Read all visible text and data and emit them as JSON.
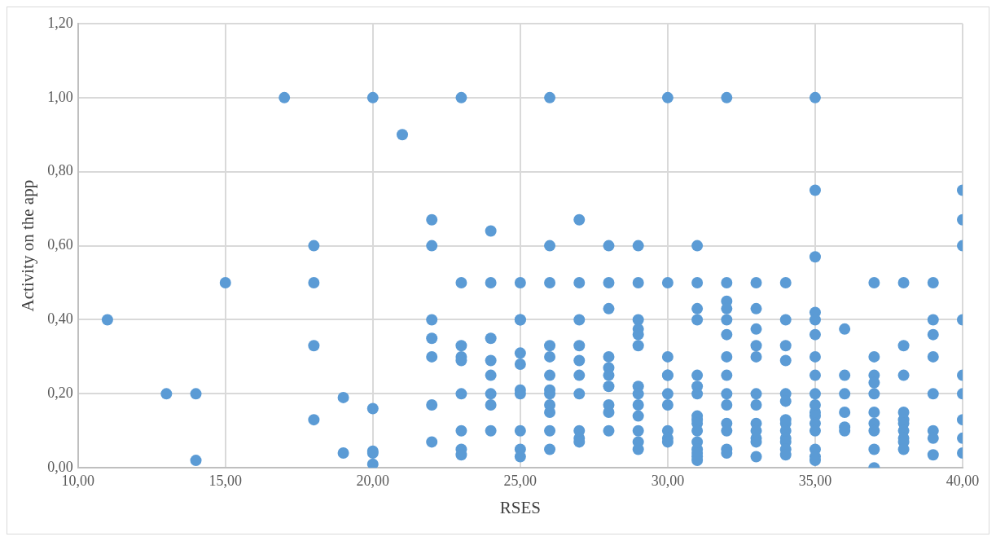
{
  "chart_data": {
    "type": "scatter",
    "xlabel": "RSES",
    "ylabel": "Activity on the app",
    "marker": "circle",
    "grid": true,
    "xlim": [
      10,
      40
    ],
    "ylim": [
      0,
      1.2
    ],
    "xticks": [
      {
        "value": 10,
        "label": "10,00"
      },
      {
        "value": 15,
        "label": "15,00"
      },
      {
        "value": 20,
        "label": "20,00"
      },
      {
        "value": 25,
        "label": "25,00"
      },
      {
        "value": 30,
        "label": "30,00"
      },
      {
        "value": 35,
        "label": "35,00"
      },
      {
        "value": 40,
        "label": "40,00"
      }
    ],
    "yticks": [
      {
        "value": 0,
        "label": "0,00"
      },
      {
        "value": 0.2,
        "label": "0,20"
      },
      {
        "value": 0.4,
        "label": "0,40"
      },
      {
        "value": 0.6,
        "label": "0,60"
      },
      {
        "value": 0.8,
        "label": "0,80"
      },
      {
        "value": 1,
        "label": "1,00"
      },
      {
        "value": 1.2,
        "label": "1,20"
      }
    ],
    "series": [
      {
        "color": "#5b9bd5",
        "x": [
          11,
          13,
          14,
          14,
          15,
          17,
          18,
          18,
          18,
          18,
          19,
          19,
          20,
          20,
          20,
          20,
          20,
          21,
          22,
          22,
          22,
          22,
          22,
          22,
          22,
          23,
          23,
          23,
          23,
          23,
          23,
          23,
          23,
          23,
          24,
          24,
          24,
          24,
          24,
          24,
          24,
          24,
          25,
          25,
          25,
          25,
          25,
          25,
          25,
          25,
          25,
          25,
          26,
          26,
          26,
          26,
          26,
          26,
          26,
          26,
          26,
          26,
          26,
          26,
          27,
          27,
          27,
          27,
          27,
          27,
          27,
          27,
          27,
          27,
          28,
          28,
          28,
          28,
          28,
          28,
          28,
          28,
          28,
          28,
          29,
          29,
          29,
          29,
          29,
          29,
          29,
          29,
          29,
          29,
          29,
          29,
          29,
          30,
          30,
          30,
          30,
          30,
          30,
          30,
          30,
          30,
          30,
          31,
          31,
          31,
          31,
          31,
          31,
          31,
          31,
          31,
          31,
          31,
          31,
          31,
          31,
          31,
          31,
          32,
          32,
          32,
          32,
          32,
          32,
          32,
          32,
          32,
          32,
          32,
          32,
          32,
          32,
          33,
          33,
          33,
          33,
          33,
          33,
          33,
          33,
          33,
          33,
          33,
          33,
          34,
          34,
          34,
          34,
          34,
          34,
          34,
          34,
          34,
          34,
          34,
          34,
          34,
          35,
          35,
          35,
          35,
          35,
          35,
          35,
          35,
          35,
          35,
          35,
          35,
          35,
          35,
          35,
          35,
          35,
          36,
          36,
          36,
          36,
          36,
          36,
          37,
          37,
          37,
          37,
          37,
          37,
          37,
          37,
          37,
          37,
          38,
          38,
          38,
          38,
          38,
          38,
          38,
          38,
          38,
          38,
          39,
          39,
          39,
          39,
          39,
          39,
          39,
          39,
          40,
          40,
          40,
          40,
          40,
          40,
          40,
          40,
          40
        ],
        "values": [
          0.4,
          0.2,
          0.2,
          0.02,
          0.5,
          1,
          0.6,
          0.5,
          0.33,
          0.13,
          0.19,
          0.04,
          1,
          0.16,
          0.045,
          0.04,
          0.01,
          0.9,
          0.67,
          0.6,
          0.4,
          0.35,
          0.3,
          0.17,
          0.07,
          1,
          0.5,
          0.33,
          0.3,
          0.29,
          0.2,
          0.1,
          0.05,
          0.035,
          0.64,
          0.5,
          0.35,
          0.29,
          0.25,
          0.2,
          0.17,
          0.1,
          0.5,
          0.4,
          0.4,
          0.31,
          0.28,
          0.21,
          0.2,
          0.1,
          0.05,
          0.03,
          1,
          0.6,
          0.5,
          0.33,
          0.3,
          0.25,
          0.21,
          0.2,
          0.17,
          0.15,
          0.1,
          0.05,
          0.67,
          0.5,
          0.4,
          0.33,
          0.29,
          0.25,
          0.2,
          0.1,
          0.08,
          0.07,
          0.6,
          0.5,
          0.43,
          0.3,
          0.27,
          0.25,
          0.22,
          0.17,
          0.15,
          0.1,
          0.6,
          0.5,
          0.4,
          0.375,
          0.36,
          0.33,
          0.22,
          0.2,
          0.17,
          0.14,
          0.1,
          0.07,
          0.05,
          1,
          0.5,
          0.3,
          0.25,
          0.25,
          0.2,
          0.17,
          0.1,
          0.08,
          0.07,
          0.6,
          0.5,
          0.43,
          0.4,
          0.25,
          0.22,
          0.2,
          0.14,
          0.13,
          0.12,
          0.1,
          0.07,
          0.05,
          0.04,
          0.03,
          0.02,
          1,
          0.5,
          0.45,
          0.43,
          0.4,
          0.36,
          0.3,
          0.25,
          0.2,
          0.17,
          0.12,
          0.1,
          0.05,
          0.04,
          0.5,
          0.43,
          0.375,
          0.33,
          0.3,
          0.2,
          0.17,
          0.12,
          0.1,
          0.08,
          0.07,
          0.03,
          0.5,
          0.4,
          0.33,
          0.29,
          0.2,
          0.18,
          0.13,
          0.12,
          0.1,
          0.08,
          0.07,
          0.05,
          0.035,
          1,
          0.75,
          0.57,
          0.42,
          0.4,
          0.36,
          0.3,
          0.25,
          0.2,
          0.17,
          0.15,
          0.14,
          0.12,
          0.1,
          0.05,
          0.03,
          0.02,
          0.375,
          0.25,
          0.2,
          0.15,
          0.11,
          0.1,
          0.5,
          0.3,
          0.25,
          0.23,
          0.2,
          0.15,
          0.12,
          0.1,
          0.05,
          0,
          0.5,
          0.33,
          0.25,
          0.15,
          0.13,
          0.12,
          0.1,
          0.08,
          0.07,
          0.05,
          0.5,
          0.4,
          0.36,
          0.3,
          0.2,
          0.1,
          0.08,
          0.035,
          0.75,
          0.67,
          0.6,
          0.4,
          0.25,
          0.2,
          0.13,
          0.08,
          0.04
        ]
      }
    ]
  }
}
